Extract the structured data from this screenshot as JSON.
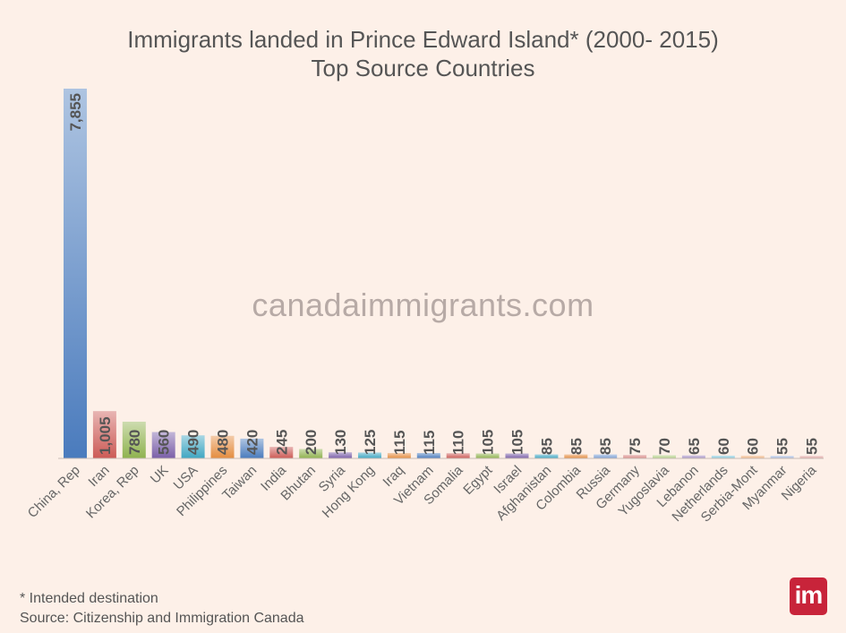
{
  "title_line1": "Immigrants landed in Prince Edward Island* (2000- 2015)",
  "title_line2": "Top Source Countries",
  "watermark": "canadaimmigrants.com",
  "footnote": "* Intended destination",
  "source": "Source: Citizenship and Immigration Canada",
  "logo_text": "im",
  "chart_data": {
    "type": "bar",
    "categories": [
      "China, Rep",
      "Iran",
      "Korea, Rep",
      "UK",
      "USA",
      "Philippines",
      "Taiwan",
      "India",
      "Bhutan",
      "Syria",
      "Hong Kong",
      "Iraq",
      "Vietnam",
      "Somalia",
      "Egypt",
      "Israel",
      "Afghanistan",
      "Colombia",
      "Russia",
      "Germany",
      "Yugoslavia",
      "Lebanon",
      "Netherlands",
      "Serbia-Mont",
      "Myanmar",
      "Nigeria"
    ],
    "values": [
      7855,
      1005,
      780,
      560,
      490,
      480,
      420,
      245,
      200,
      130,
      125,
      115,
      115,
      110,
      105,
      105,
      85,
      85,
      85,
      75,
      70,
      65,
      60,
      60,
      55,
      55
    ],
    "data_labels": [
      "7,855",
      "1,005",
      "780",
      "560",
      "490",
      "480",
      "420",
      "245",
      "200",
      "130",
      "125",
      "115",
      "115",
      "110",
      "105",
      "105",
      "85",
      "85",
      "85",
      "75",
      "70",
      "65",
      "60",
      "60",
      "55",
      "55"
    ],
    "colors": [
      "#4a7bbd",
      "#cc5a55",
      "#8fb24e",
      "#7a5ea8",
      "#3fa6c2",
      "#e48c3f",
      "#4a7bbd",
      "#cc5a55",
      "#8fb24e",
      "#7a5ea8",
      "#3fa6c2",
      "#e48c3f",
      "#4a7bbd",
      "#cc5a55",
      "#8fb24e",
      "#7a5ea8",
      "#3fa6c2",
      "#e48c3f",
      "#7b9fd4",
      "#d98a87",
      "#b3cf87",
      "#a592c6",
      "#86c8dc",
      "#f0b383",
      "#a3b8dd",
      "#e2a7a4"
    ],
    "ylim": [
      0,
      7855
    ],
    "grid": false,
    "legend": "none"
  }
}
